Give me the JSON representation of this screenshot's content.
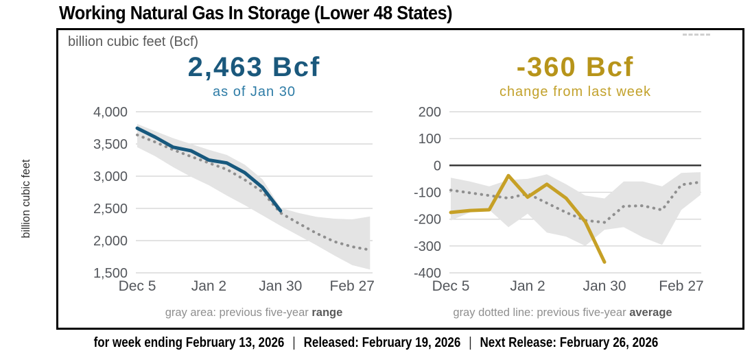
{
  "title": "Working Natural Gas In Storage (Lower 48 States)",
  "units_label": "billion cubic feet (Bcf)",
  "y_axis_title": "billion cubic feet",
  "colors": {
    "current_line_blue": "#17587D",
    "headline_blue": "#1A587C",
    "subtitle_blue": "#2E7CA6",
    "current_line_gold": "#C6A026",
    "headline_gold": "#B7941A",
    "subtitle_gold": "#C2A12B",
    "five_year_band": "#E4E4E4",
    "five_year_average_dots": "#8F8F8F",
    "gridline": "#D9D9D9",
    "zero_line": "#3A3A3A",
    "axis_text": "#53565B",
    "caption_text": "#8F8F8F",
    "caption_bold": "#595959",
    "units_text": "#595959",
    "title_text": "#000000"
  },
  "footer": {
    "segments": [
      "for week ending February 13, 2026",
      "Released: February 19, 2026",
      "Next Release: February 26, 2026"
    ],
    "separator": "|"
  },
  "chart_data": [
    {
      "type": "line",
      "name": "working-gas-in-storage",
      "headline": "2,463 Bcf",
      "subtitle": "as of Jan 30",
      "x_frequency": "weekly",
      "x_ticks": [
        {
          "week": 0,
          "label": "Dec 5"
        },
        {
          "week": 4,
          "label": "Jan 2"
        },
        {
          "week": 8,
          "label": "Jan 30"
        },
        {
          "week": 12,
          "label": "Feb 27"
        }
      ],
      "y_ticks": [
        {
          "value": 4000,
          "label": "4,000"
        },
        {
          "value": 3500,
          "label": "3,500"
        },
        {
          "value": 3000,
          "label": "3,000"
        },
        {
          "value": 2500,
          "label": "2,500"
        },
        {
          "value": 2000,
          "label": "2,000"
        },
        {
          "value": 1500,
          "label": "1,500"
        }
      ],
      "ylim": [
        1500,
        4000
      ],
      "zero_line": false,
      "series": [
        {
          "name": "current",
          "color": "#17587D",
          "values": [
            3745,
            3606,
            3450,
            3395,
            3250,
            3205,
            3055,
            2823,
            2463
          ]
        },
        {
          "name": "five_year_average",
          "style": "dotted",
          "color": "#8F8F8F",
          "values": [
            3640,
            3530,
            3410,
            3305,
            3205,
            3105,
            2945,
            2755,
            2430,
            2270,
            2115,
            1985,
            1905,
            1855
          ]
        }
      ],
      "band": {
        "name": "five_year_range",
        "color": "#E4E4E4",
        "upper": [
          3810,
          3700,
          3590,
          3500,
          3410,
          3330,
          3180,
          2950,
          2510,
          2430,
          2370,
          2340,
          2330,
          2375
        ],
        "lower": [
          3450,
          3310,
          3140,
          2990,
          2860,
          2700,
          2550,
          2390,
          2230,
          2080,
          1930,
          1770,
          1620,
          1550
        ]
      },
      "caption": {
        "text": "gray area: previous five-year ",
        "bold": "range"
      }
    },
    {
      "type": "line",
      "name": "weekly-change",
      "headline": "-360 Bcf",
      "subtitle": "change from last week",
      "x_frequency": "weekly",
      "x_ticks": [
        {
          "week": 0,
          "label": "Dec 5"
        },
        {
          "week": 4,
          "label": "Jan 2"
        },
        {
          "week": 8,
          "label": "Jan 30"
        },
        {
          "week": 12,
          "label": "Feb 27"
        }
      ],
      "y_ticks": [
        {
          "value": 200,
          "label": "200"
        },
        {
          "value": 100,
          "label": "100"
        },
        {
          "value": 0,
          "label": "0"
        },
        {
          "value": -100,
          "label": "-100"
        },
        {
          "value": -200,
          "label": "-200"
        },
        {
          "value": -300,
          "label": "-300"
        },
        {
          "value": -400,
          "label": "-400"
        }
      ],
      "ylim": [
        -400,
        200
      ],
      "zero_line": true,
      "series": [
        {
          "name": "current",
          "color": "#C6A026",
          "values": [
            -175,
            -168,
            -165,
            -38,
            -118,
            -70,
            -122,
            -210,
            -360
          ]
        },
        {
          "name": "five_year_average",
          "style": "dotted",
          "color": "#8F8F8F",
          "values": [
            -92,
            -102,
            -112,
            -122,
            -105,
            -140,
            -175,
            -205,
            -212,
            -152,
            -150,
            -166,
            -72,
            -62
          ]
        }
      ],
      "band": {
        "name": "five_year_range",
        "color": "#E4E4E4",
        "upper": [
          -46,
          -60,
          -78,
          -54,
          -50,
          -33,
          -70,
          -112,
          -123,
          -60,
          -60,
          -78,
          -28,
          -25
        ],
        "lower": [
          -205,
          -175,
          -165,
          -230,
          -180,
          -250,
          -265,
          -300,
          -240,
          -230,
          -268,
          -296,
          -166,
          -110
        ]
      },
      "caption": {
        "text": "gray dotted line: previous five-year ",
        "bold": "average"
      }
    }
  ]
}
